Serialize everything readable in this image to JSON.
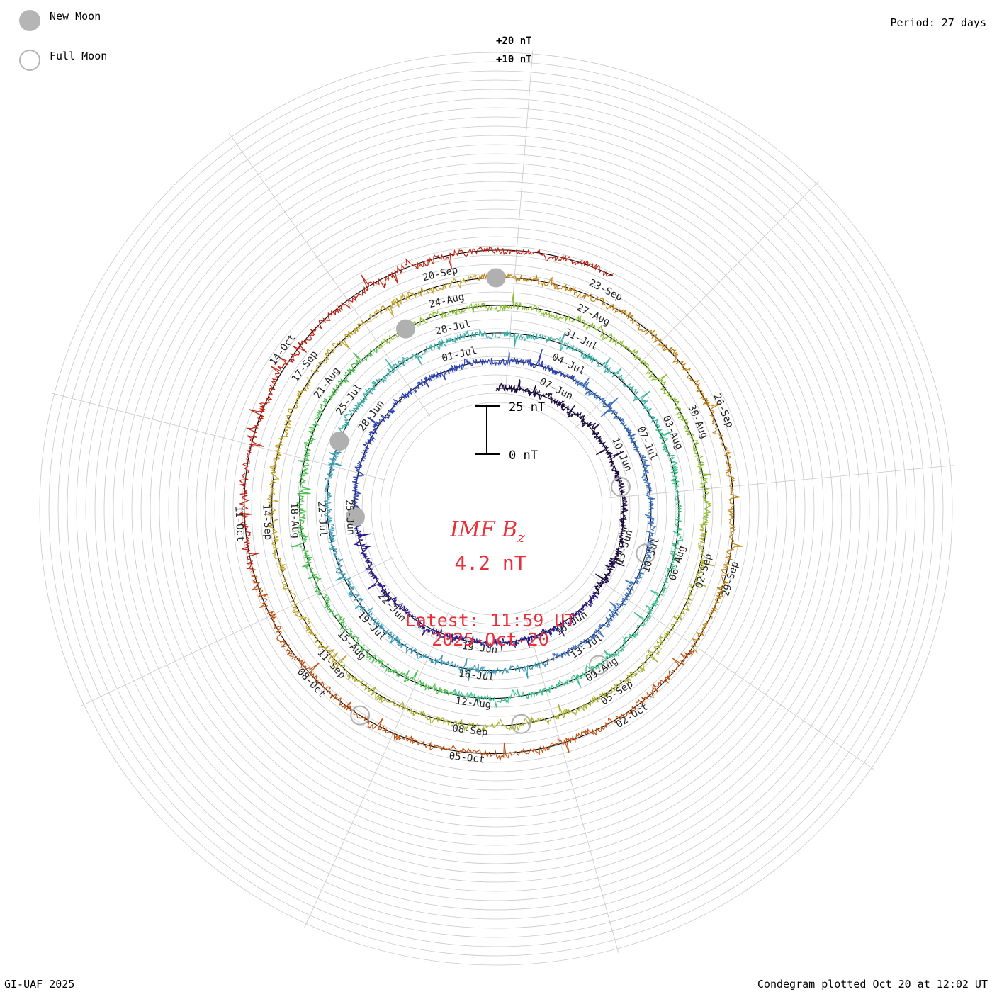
{
  "legend": {
    "new_moon_label": "New Moon",
    "full_moon_label": "Full Moon"
  },
  "period_label": "Period: 27 days",
  "footer": {
    "credit": "GI-UAF 2025",
    "plotted": "Condegram plotted Oct 20 at 12:02 UT"
  },
  "center": {
    "title_main": "IMF B",
    "title_sub": "z",
    "value": "4.2 nT",
    "latest_label": "Latest: 11:59 UT",
    "latest_date": "2025-Oct-20"
  },
  "scale_bar": {
    "top_label": "25 nT",
    "bottom_label": "0 nT"
  },
  "chart_data": {
    "type": "line",
    "subtype": "condegram (spiral, 27-day period)",
    "title": "IMF Bz",
    "unit": "nT",
    "period_days": 27,
    "scale_labels": [
      "+20 nT",
      "+10 nT"
    ],
    "grid": true,
    "colors": [
      "#1a0a40",
      "#2a1a8a",
      "#2a40b0",
      "#3a6ec0",
      "#3a9ab8",
      "#3ab0a8",
      "#3ac08a",
      "#4ac050",
      "#8ac030",
      "#a8b028",
      "#c0a020",
      "#c08010",
      "#c05010",
      "#c02010"
    ],
    "date_labels": [
      "07-Jun",
      "10-Jun",
      "13-Jun",
      "16-Jun",
      "19-Jun",
      "22-Jun",
      "25-Jun",
      "28-Jun",
      "01-Jul",
      "04-Jul",
      "07-Jul",
      "10-Jul",
      "13-Jul",
      "16-Jul",
      "19-Jul",
      "22-Jul",
      "25-Jul",
      "28-Jul",
      "31-Jul",
      "03-Aug",
      "06-Aug",
      "09-Aug",
      "12-Aug",
      "15-Aug",
      "18-Aug",
      "21-Aug",
      "24-Aug",
      "27-Aug",
      "30-Aug",
      "02-Sep",
      "05-Sep",
      "08-Sep",
      "11-Sep",
      "14-Sep",
      "17-Sep",
      "20-Sep",
      "23-Sep",
      "26-Sep",
      "29-Sep",
      "02-Oct",
      "05-Oct",
      "08-Oct",
      "11-Oct",
      "14-Oct"
    ],
    "series": [
      {
        "start": "2025-06-05",
        "end": "2025-10-20",
        "values_nT_summary": {
          "min": -25,
          "max": 25,
          "latest": 4.2
        }
      }
    ],
    "moon_phases": {
      "new_moon": [
        "2025-06-25",
        "2025-07-24",
        "2025-08-23",
        "2025-09-21"
      ],
      "full_moon": [
        "2025-06-11",
        "2025-07-10",
        "2025-08-09",
        "2025-09-07",
        "2025-10-07"
      ]
    }
  }
}
